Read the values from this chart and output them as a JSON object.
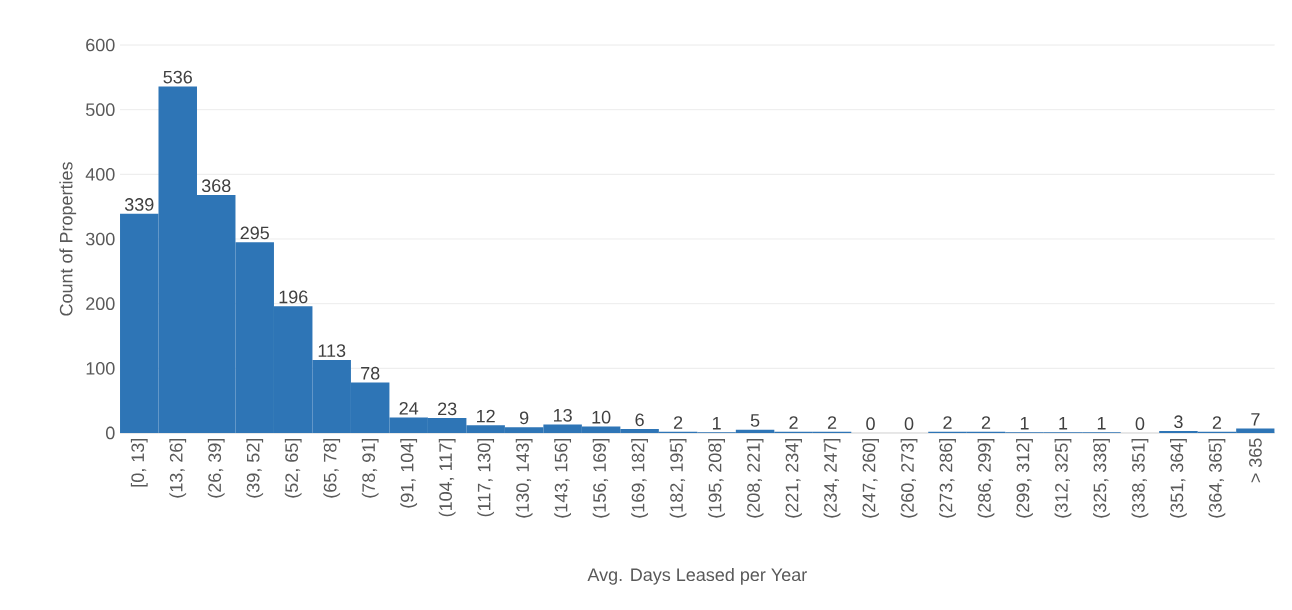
{
  "chart_data": {
    "type": "bar",
    "xlabel": "Avg. Days Leased per Year",
    "ylabel": "Count of Properties",
    "categories": [
      "[0, 13]",
      "(13, 26]",
      "(26, 39]",
      "(39, 52]",
      "(52, 65]",
      "(65, 78]",
      "(78, 91]",
      "(91, 104]",
      "(104, 117]",
      "(117, 130]",
      "(130, 143]",
      "(143, 156]",
      "(156, 169]",
      "(169, 182]",
      "(182, 195]",
      "(195, 208]",
      "(208, 221]",
      "(221, 234]",
      "(234, 247]",
      "(247, 260]",
      "(260, 273]",
      "(273, 286]",
      "(286, 299]",
      "(299, 312]",
      "(312, 325]",
      "(325, 338]",
      "(338, 351]",
      "(351, 364]",
      "(364, 365]",
      "> 365"
    ],
    "values": [
      339,
      536,
      368,
      295,
      196,
      113,
      78,
      24,
      23,
      12,
      9,
      13,
      10,
      6,
      2,
      1,
      5,
      2,
      2,
      0,
      0,
      2,
      2,
      1,
      1,
      1,
      0,
      3,
      2,
      7
    ],
    "color": "#2e75b6",
    "ylim": [
      0,
      600
    ],
    "yticks": [
      0,
      100,
      200,
      300,
      400,
      500,
      600
    ],
    "grid": "y",
    "data_labels": true
  }
}
